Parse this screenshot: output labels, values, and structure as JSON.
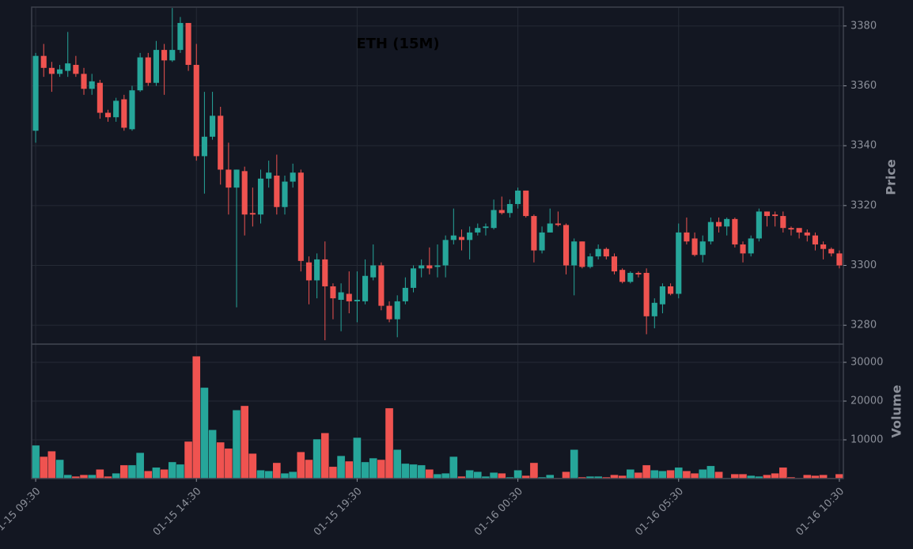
{
  "chart_data": {
    "type": "candlestick",
    "title": "ETH (15M)",
    "categories": [
      "01-15 09:30",
      null,
      null,
      null,
      null,
      null,
      null,
      null,
      null,
      null,
      null,
      null,
      null,
      null,
      null,
      null,
      null,
      null,
      null,
      null,
      "01-15 14:30",
      null,
      null,
      null,
      null,
      null,
      null,
      null,
      null,
      null,
      null,
      null,
      null,
      null,
      null,
      null,
      null,
      null,
      null,
      null,
      "01-15 19:30",
      null,
      null,
      null,
      null,
      null,
      null,
      null,
      null,
      null,
      null,
      null,
      null,
      null,
      null,
      null,
      null,
      null,
      null,
      null,
      "01-16 00:30",
      null,
      null,
      null,
      null,
      null,
      null,
      null,
      null,
      null,
      null,
      null,
      null,
      null,
      null,
      null,
      null,
      null,
      null,
      null,
      "01-16 05:30",
      null,
      null,
      null,
      null,
      null,
      null,
      null,
      null,
      null,
      null,
      null,
      null,
      null,
      null,
      null,
      null,
      null,
      null,
      null,
      "01-16 10:30"
    ],
    "open": [
      3345,
      3370,
      3366,
      3364,
      3365,
      3367,
      3364,
      3359,
      3361,
      3351,
      3349.5,
      3355.5,
      3345.5,
      3358.5,
      3369.5,
      3361,
      3372,
      3368.5,
      3372,
      3381,
      3367,
      3336.5,
      3343,
      3350,
      3332,
      3326,
      3331.5,
      3317.5,
      3317,
      3329,
      3330,
      3319.5,
      3328,
      3331,
      3301,
      3295,
      3302,
      3293,
      3288.5,
      3290.5,
      3288,
      3288,
      3296,
      3300,
      3286.5,
      3282,
      3288,
      3292.5,
      3299,
      3300,
      3299.5,
      3300,
      3308.5,
      3309.5,
      3308.5,
      3311,
      3312.5,
      3312.5,
      3318.5,
      3317.5,
      3320.5,
      3325,
      3316.5,
      3305,
      3311,
      3314,
      3313.5,
      3300,
      3308,
      3299.5,
      3303,
      3305.5,
      3303,
      3298.5,
      3294.5,
      3297.5,
      3297.5,
      3283,
      3287,
      3293,
      3290.5,
      3311,
      3309,
      3303.5,
      3308,
      3314.5,
      3313,
      3315.5,
      3307,
      3304,
      3309,
      3318,
      3317,
      3316.5,
      3312.5,
      3312.5,
      3311,
      3310,
      3307,
      3305.5,
      3304
    ],
    "high": [
      3371,
      3374,
      3368,
      3367,
      3378,
      3370,
      3366,
      3364,
      3362,
      3352,
      3356,
      3357,
      3360,
      3371,
      3371,
      3375,
      3374,
      3386,
      3383,
      3381,
      3374,
      3358,
      3358,
      3353,
      3341,
      3332,
      3333,
      3326,
      3332,
      3335,
      3337,
      3330,
      3334,
      3332,
      3303,
      3304,
      3308,
      3294,
      3294,
      3298,
      3298,
      3302,
      3307,
      3301,
      3288,
      3290,
      3296,
      3300,
      3302,
      3306,
      3307,
      3310,
      3319,
      3312,
      3313,
      3314,
      3314,
      3322,
      3323,
      3322,
      3326,
      3325,
      3317,
      3313,
      3319,
      3318,
      3314,
      3309,
      3308,
      3304,
      3307,
      3306,
      3304,
      3299,
      3298,
      3298,
      3299,
      3289,
      3294,
      3294,
      3314,
      3316,
      3311,
      3310,
      3316,
      3316,
      3316,
      3316,
      3308,
      3310,
      3319,
      3318,
      3318,
      3318,
      3313,
      3312,
      3312,
      3311,
      3308,
      3306,
      3305
    ],
    "low": [
      3341,
      3363,
      3358,
      3363,
      3363,
      3363,
      3357,
      3357,
      3349,
      3348,
      3348,
      3345,
      3345,
      3358,
      3360,
      3360,
      3357,
      3368,
      3371,
      3365,
      3335,
      3324,
      3342,
      3327,
      3317,
      3286,
      3310,
      3313,
      3314,
      3326,
      3317,
      3317,
      3326,
      3298,
      3287,
      3289,
      3275,
      3282,
      3278,
      3284,
      3281,
      3287,
      3295,
      3285,
      3281,
      3276,
      3287,
      3291,
      3296,
      3297,
      3296,
      3296,
      3307,
      3305,
      3302,
      3310,
      3310,
      3312,
      3317,
      3316,
      3319,
      3316,
      3301,
      3304,
      3311,
      3313,
      3297,
      3290,
      3299,
      3299,
      3302,
      3302,
      3297,
      3294,
      3294,
      3296,
      3277,
      3279,
      3284,
      3290,
      3289,
      3307,
      3303,
      3301,
      3307,
      3311,
      3310,
      3306,
      3301,
      3303,
      3308,
      3313,
      3313,
      3311,
      3310,
      3309,
      3308,
      3305,
      3302,
      3303,
      3299
    ],
    "close": [
      3370,
      3366,
      3364,
      3365.5,
      3367.5,
      3364,
      3359,
      3361.5,
      3351,
      3349.5,
      3355,
      3346,
      3358.5,
      3369.5,
      3361,
      3372,
      3368.5,
      3372,
      3381,
      3367,
      3336.5,
      3343,
      3350,
      3332,
      3326,
      3332,
      3317,
      3317,
      3329,
      3331,
      3319.5,
      3328,
      3331,
      3301.5,
      3295,
      3302,
      3293,
      3289,
      3291,
      3288,
      3288.5,
      3296.5,
      3300,
      3286.5,
      3282,
      3288,
      3292.5,
      3299,
      3300,
      3299,
      3300,
      3308.5,
      3310,
      3308.5,
      3311,
      3312.5,
      3313,
      3318.5,
      3317.5,
      3320.5,
      3325,
      3316.5,
      3305,
      3311,
      3314,
      3313.5,
      3300,
      3308,
      3299.5,
      3303,
      3305.5,
      3303,
      3298,
      3294.5,
      3297.5,
      3297,
      3283,
      3287.5,
      3293,
      3290.5,
      3311,
      3308,
      3303.5,
      3308,
      3314.5,
      3313,
      3315.5,
      3307,
      3304,
      3309,
      3318,
      3316.5,
      3316.5,
      3312.5,
      3312,
      3311,
      3310,
      3307,
      3305.5,
      3304,
      3300
    ],
    "volume": [
      8600,
      5700,
      7100,
      4900,
      1000,
      600,
      1000,
      1000,
      2400,
      600,
      1400,
      3500,
      3500,
      6700,
      2000,
      2900,
      2400,
      4300,
      3700,
      9600,
      31600,
      23500,
      12600,
      9400,
      7800,
      17700,
      18800,
      6500,
      2200,
      2000,
      4100,
      1400,
      1800,
      6900,
      4900,
      10200,
      11800,
      3100,
      5900,
      4500,
      10600,
      4300,
      5300,
      4900,
      18200,
      7500,
      3900,
      3700,
      3500,
      2400,
      1200,
      1400,
      5700,
      600,
      2200,
      1800,
      600,
      1600,
      1400,
      400,
      2200,
      800,
      4100,
      400,
      1000,
      200,
      1800,
      7500,
      400,
      600,
      600,
      400,
      1000,
      800,
      2400,
      1600,
      3500,
      2200,
      2000,
      2200,
      2900,
      2000,
      1400,
      2400,
      3300,
      1800,
      200,
      1200,
      1200,
      800,
      600,
      1000,
      1400,
      2900,
      400,
      200,
      1000,
      800,
      1000,
      200,
      1200
    ],
    "up_color": "#26a69a",
    "down_color": "#ef5350",
    "xlim": [
      -0.5,
      100.5
    ],
    "ylabel": "Price",
    "ylim": [
      3273.7,
      3386.3
    ],
    "yticks": [
      3280,
      3300,
      3320,
      3340,
      3360,
      3380
    ],
    "volume_label": "Volume",
    "volume_ylim": [
      0,
      34700
    ],
    "volume_yticks": [
      10000,
      20000,
      30000
    ],
    "grid": true
  }
}
